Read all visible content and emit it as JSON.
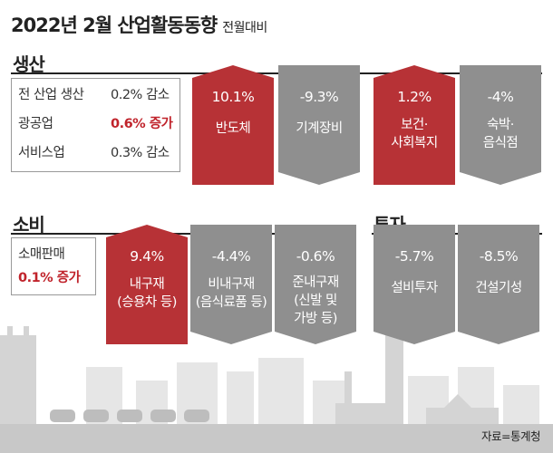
{
  "title": {
    "main": "2022년 2월 산업활동동향",
    "sub": "전월대비"
  },
  "sections": {
    "production": "생산",
    "consumption": "소비",
    "investment": "투자"
  },
  "production_summary": [
    {
      "label": "전 산업 생산",
      "value": "0.2% 감소",
      "highlight": false
    },
    {
      "label": "광공업",
      "value": "0.6% 증가",
      "highlight": true
    },
    {
      "label": "서비스업",
      "value": "0.3% 감소",
      "highlight": false
    }
  ],
  "consumption_summary": {
    "label": "소매판매",
    "value": "0.1% 증가"
  },
  "colors": {
    "increase": "#b73236",
    "decrease": "#8f8f8f",
    "accent_text": "#c0232b"
  },
  "chart_data": [
    {
      "type": "table",
      "title": "생산",
      "categories": [
        "반도체",
        "기계장비",
        "보건·사회복지",
        "숙박·음식점"
      ],
      "values": [
        10.1,
        -9.3,
        1.2,
        -4
      ],
      "unit": "%",
      "cards": [
        {
          "pct": "10.1%",
          "label": "반도체",
          "dir": "up"
        },
        {
          "pct": "-9.3%",
          "label": "기계장비",
          "dir": "down"
        },
        {
          "pct": "1.2%",
          "label": "보건·\n사회복지",
          "dir": "up"
        },
        {
          "pct": "-4%",
          "label": "숙박·\n음식점",
          "dir": "down"
        }
      ]
    },
    {
      "type": "table",
      "title": "소비",
      "categories": [
        "내구재",
        "비내구재",
        "준내구재"
      ],
      "values": [
        9.4,
        -4.4,
        -0.6
      ],
      "unit": "%",
      "cards": [
        {
          "pct": "9.4%",
          "label": "내구재\n(승용차 등)",
          "dir": "up"
        },
        {
          "pct": "-4.4%",
          "label": "비내구재\n(음식료품 등)",
          "dir": "down"
        },
        {
          "pct": "-0.6%",
          "label": "준내구재\n(신발 및\n가방 등)",
          "dir": "down"
        }
      ]
    },
    {
      "type": "table",
      "title": "투자",
      "categories": [
        "설비투자",
        "건설기성"
      ],
      "values": [
        -5.7,
        -8.5
      ],
      "unit": "%",
      "cards": [
        {
          "pct": "-5.7%",
          "label": "설비투자",
          "dir": "down"
        },
        {
          "pct": "-8.5%",
          "label": "건설기성",
          "dir": "down"
        }
      ]
    }
  ],
  "source": "자료=통계청"
}
